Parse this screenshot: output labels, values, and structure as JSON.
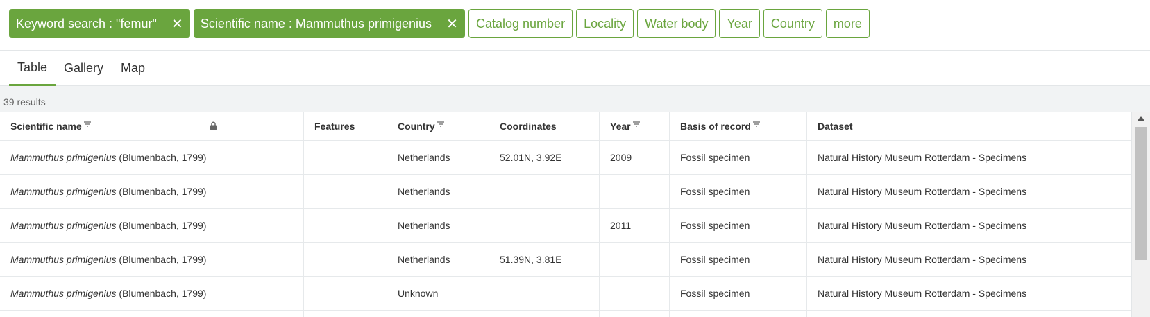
{
  "filters": {
    "active": [
      {
        "label": "Keyword search : \"femur\"",
        "close_glyph": "✕"
      },
      {
        "label": "Scientific name : Mammuthus primigenius",
        "close_glyph": "✕"
      }
    ],
    "inactive": [
      "Catalog number",
      "Locality",
      "Water body",
      "Year",
      "Country",
      "more"
    ]
  },
  "tabs": {
    "items": [
      "Table",
      "Gallery",
      "Map"
    ],
    "active": "Table"
  },
  "results": {
    "count_label": "39 results"
  },
  "table": {
    "headers": {
      "scientific_name": "Scientific name",
      "features": "Features",
      "country": "Country",
      "coordinates": "Coordinates",
      "year": "Year",
      "basis": "Basis of record",
      "dataset": "Dataset"
    },
    "rows": [
      {
        "sci_italic": "Mammuthus primigenius",
        "sci_author": " (Blumenbach, 1799)",
        "features": "",
        "country": "Netherlands",
        "coordinates": "52.01N, 3.92E",
        "year": "2009",
        "basis": "Fossil specimen",
        "dataset": "Natural History Museum Rotterdam - Specimens"
      },
      {
        "sci_italic": "Mammuthus primigenius",
        "sci_author": " (Blumenbach, 1799)",
        "features": "",
        "country": "Netherlands",
        "coordinates": "",
        "year": "",
        "basis": "Fossil specimen",
        "dataset": "Natural History Museum Rotterdam - Specimens"
      },
      {
        "sci_italic": "Mammuthus primigenius",
        "sci_author": " (Blumenbach, 1799)",
        "features": "",
        "country": "Netherlands",
        "coordinates": "",
        "year": "2011",
        "basis": "Fossil specimen",
        "dataset": "Natural History Museum Rotterdam - Specimens"
      },
      {
        "sci_italic": "Mammuthus primigenius",
        "sci_author": " (Blumenbach, 1799)",
        "features": "",
        "country": "Netherlands",
        "coordinates": "51.39N, 3.81E",
        "year": "",
        "basis": "Fossil specimen",
        "dataset": "Natural History Museum Rotterdam - Specimens"
      },
      {
        "sci_italic": "Mammuthus primigenius",
        "sci_author": " (Blumenbach, 1799)",
        "features": "",
        "country": "Unknown",
        "coordinates": "",
        "year": "",
        "basis": "Fossil specimen",
        "dataset": "Natural History Museum Rotterdam - Specimens"
      }
    ]
  },
  "icons": {
    "sort": "sort-icon",
    "lock": "lock-icon",
    "close": "close-icon"
  },
  "colors": {
    "accent": "#6aa53e"
  }
}
